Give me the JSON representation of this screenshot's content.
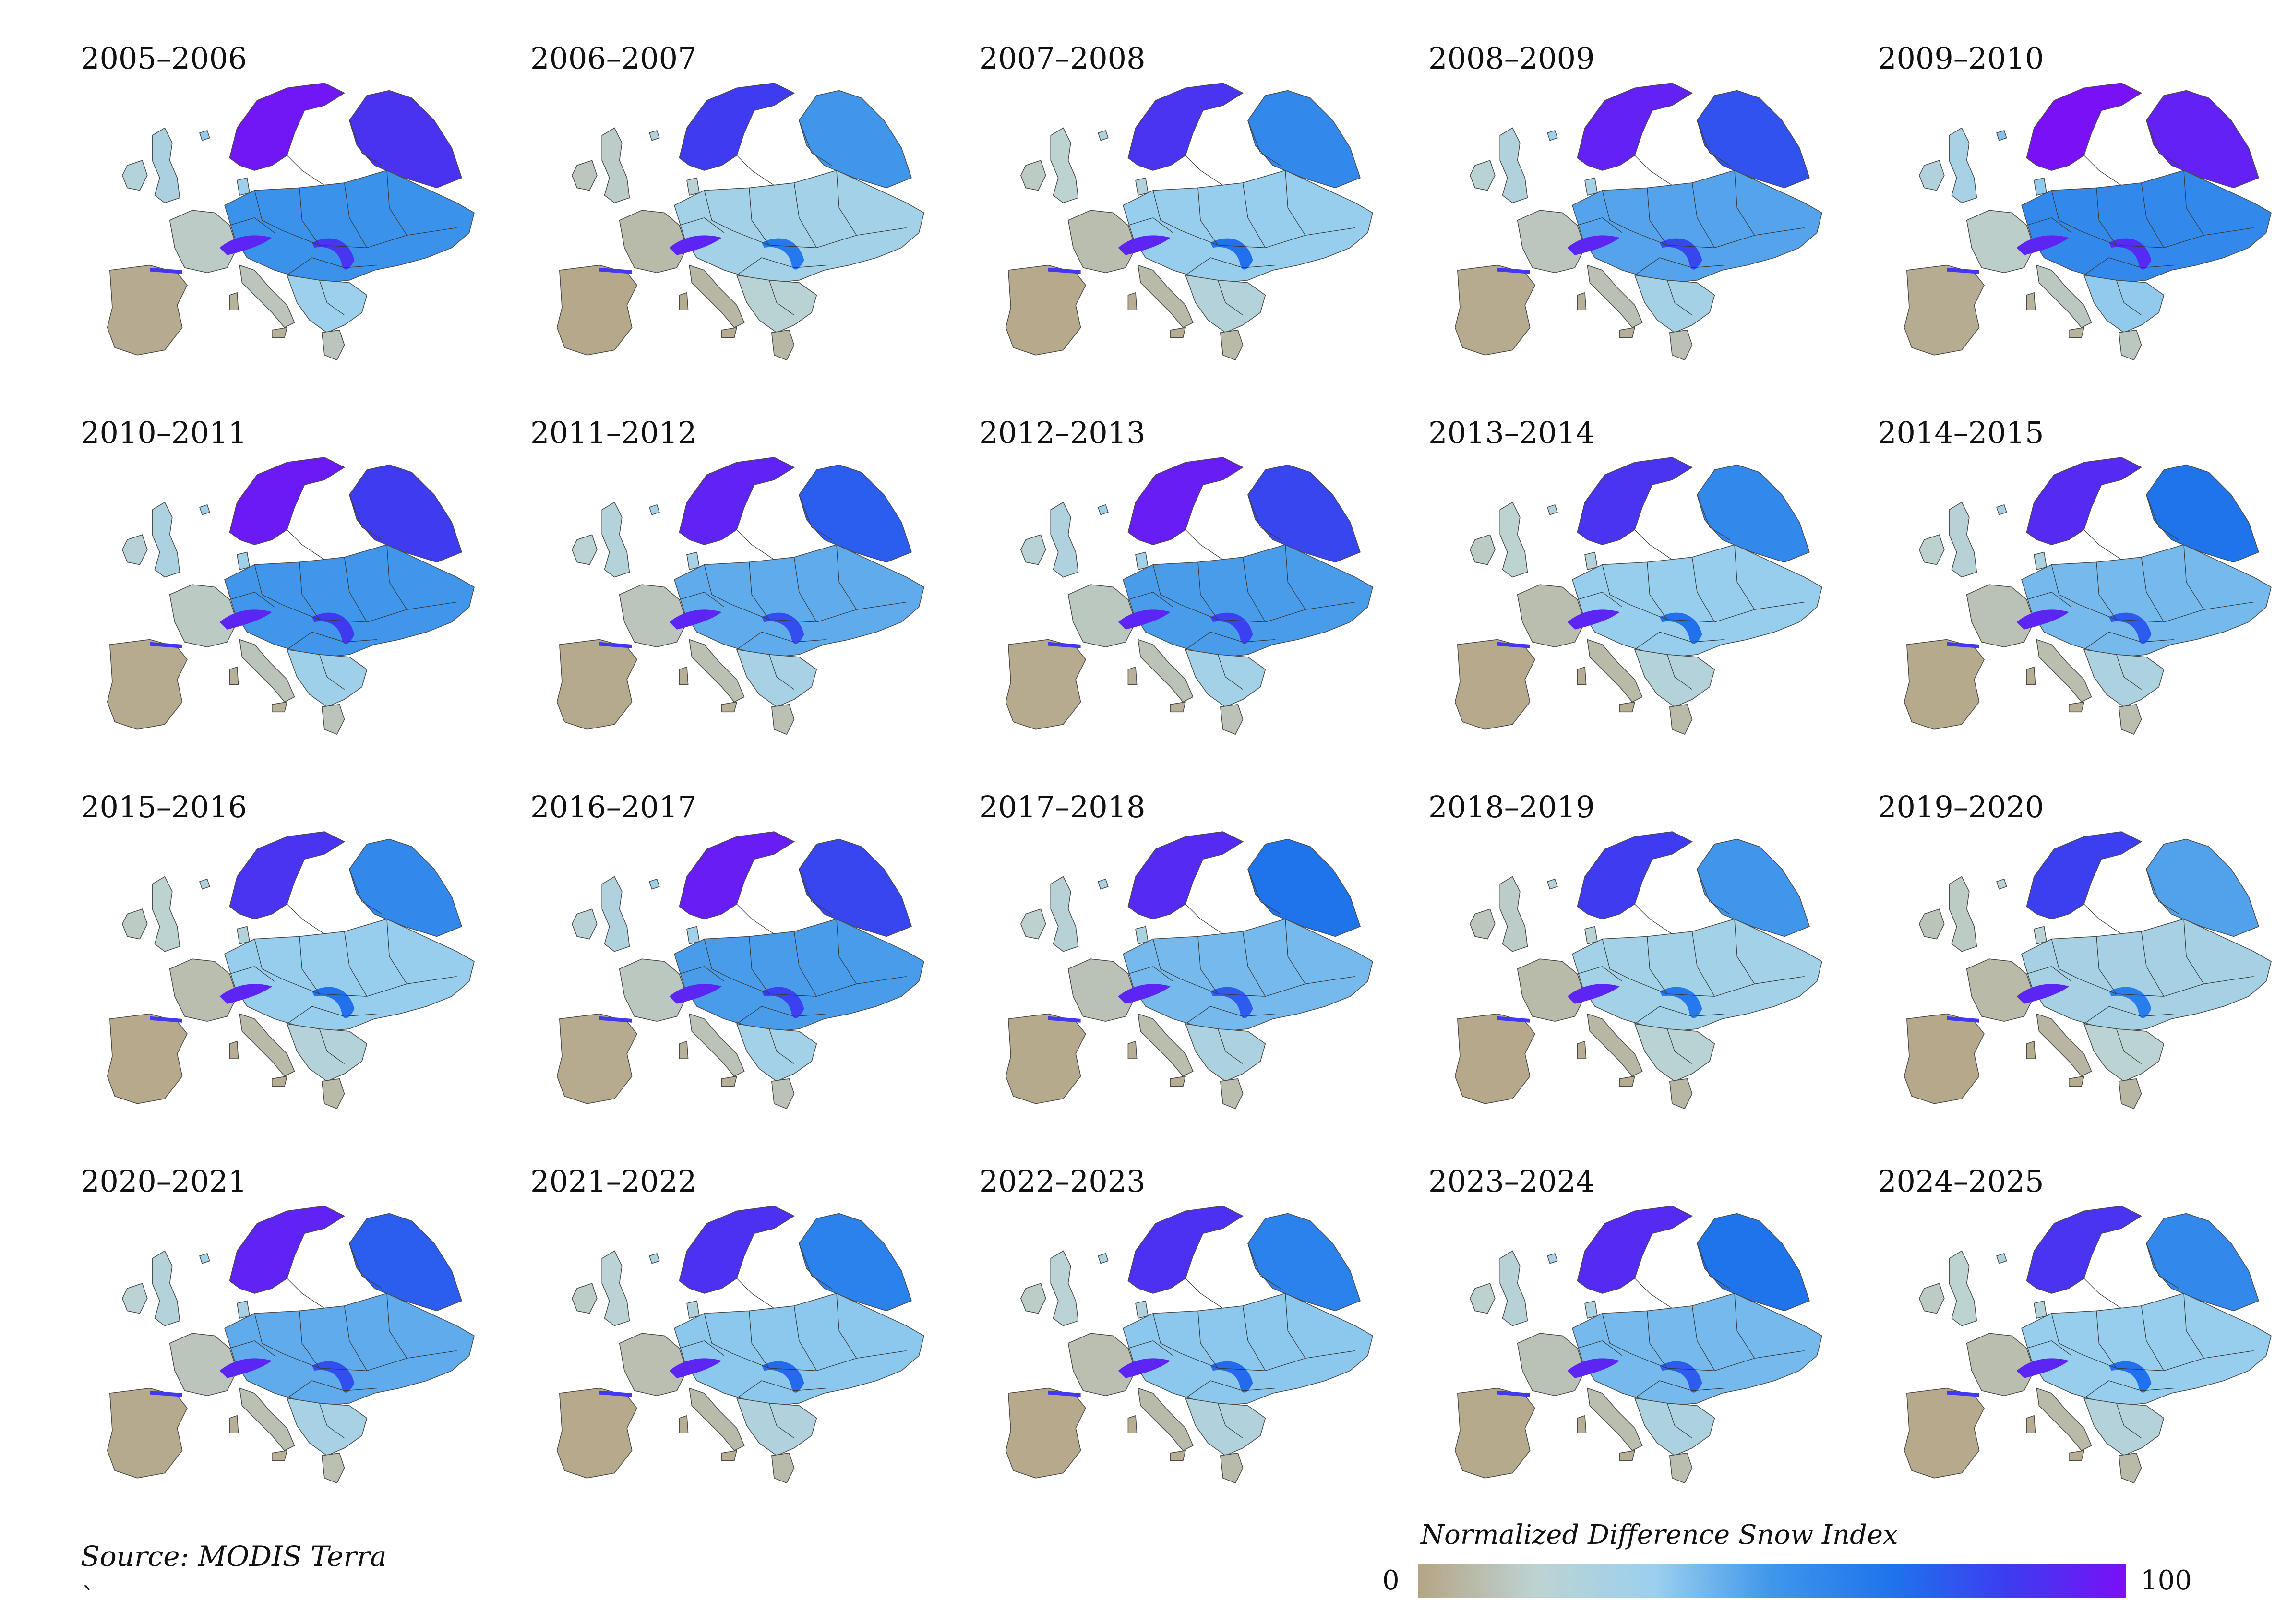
{
  "panels": [
    {
      "label": "2005–2006",
      "snow_level": 0.9
    },
    {
      "label": "2006–2007",
      "snow_level": 0.35
    },
    {
      "label": "2007–2008",
      "snow_level": 0.45
    },
    {
      "label": "2008–2009",
      "snow_level": 0.75
    },
    {
      "label": "2009–2010",
      "snow_level": 1.0
    },
    {
      "label": "2010–2011",
      "snow_level": 0.85
    },
    {
      "label": "2011–2012",
      "snow_level": 0.7
    },
    {
      "label": "2012–2013",
      "snow_level": 0.8
    },
    {
      "label": "2013–2014",
      "snow_level": 0.45
    },
    {
      "label": "2014–2015",
      "snow_level": 0.6
    },
    {
      "label": "2015–2016",
      "snow_level": 0.45
    },
    {
      "label": "2016–2017",
      "snow_level": 0.8
    },
    {
      "label": "2017–2018",
      "snow_level": 0.6
    },
    {
      "label": "2018–2019",
      "snow_level": 0.35
    },
    {
      "label": "2019–2020",
      "snow_level": 0.3
    },
    {
      "label": "2020–2021",
      "snow_level": 0.7
    },
    {
      "label": "2021–2022",
      "snow_level": 0.5
    },
    {
      "label": "2022–2023",
      "snow_level": 0.5
    },
    {
      "label": "2023–2024",
      "snow_level": 0.6
    },
    {
      "label": "2024–2025",
      "snow_level": 0.45
    }
  ],
  "source": "Source: MODIS Terra",
  "stray_mark": "`",
  "legend": {
    "title": "Normalized Difference Snow Index",
    "min": "0",
    "max": "100",
    "colors": [
      "#b5a585",
      "#bdd3d2",
      "#9bd0ee",
      "#3f96ea",
      "#1f74ec",
      "#3d3cf0",
      "#7a10f6"
    ]
  }
}
